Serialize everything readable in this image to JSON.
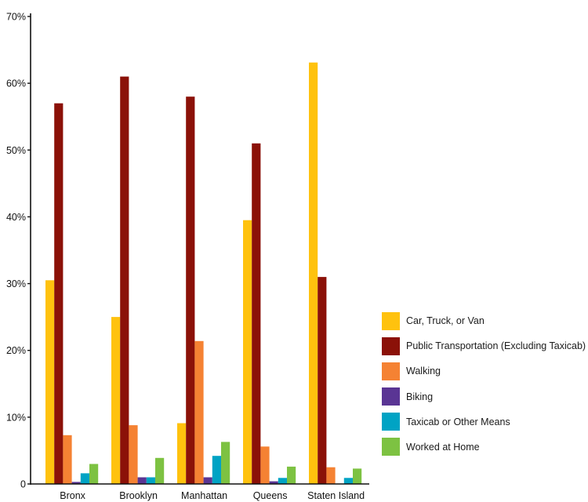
{
  "chart_data": {
    "type": "bar",
    "categories": [
      "Bronx",
      "Brooklyn",
      "Manhattan",
      "Queens",
      "Staten Island"
    ],
    "series": [
      {
        "name": "Car, Truck, or Van",
        "color": "#ffc20e",
        "values": [
          30.5,
          25.0,
          9.1,
          39.5,
          63.1
        ]
      },
      {
        "name": "Public Transportation (Excluding Taxicab)",
        "color": "#8b1108",
        "values": [
          57.0,
          61.0,
          58.0,
          51.0,
          31.0
        ]
      },
      {
        "name": "Walking",
        "color": "#f58233",
        "values": [
          7.3,
          8.8,
          21.4,
          5.6,
          2.5
        ]
      },
      {
        "name": "Biking",
        "color": "#5a3594",
        "values": [
          0.3,
          1.0,
          1.0,
          0.4,
          0.0
        ]
      },
      {
        "name": "Taxicab or Other Means",
        "color": "#00a3c4",
        "values": [
          1.6,
          1.0,
          4.2,
          0.9,
          0.9
        ]
      },
      {
        "name": "Worked at Home",
        "color": "#7dc242",
        "values": [
          3.0,
          3.9,
          6.3,
          2.6,
          2.3
        ]
      }
    ],
    "yticks": [
      "0",
      "10%",
      "20%",
      "30%",
      "40%",
      "50%",
      "60%",
      "70%"
    ],
    "ylim": [
      0,
      70
    ],
    "title": "",
    "xlabel": "",
    "ylabel": "",
    "grid": false,
    "legend_position": "right"
  }
}
